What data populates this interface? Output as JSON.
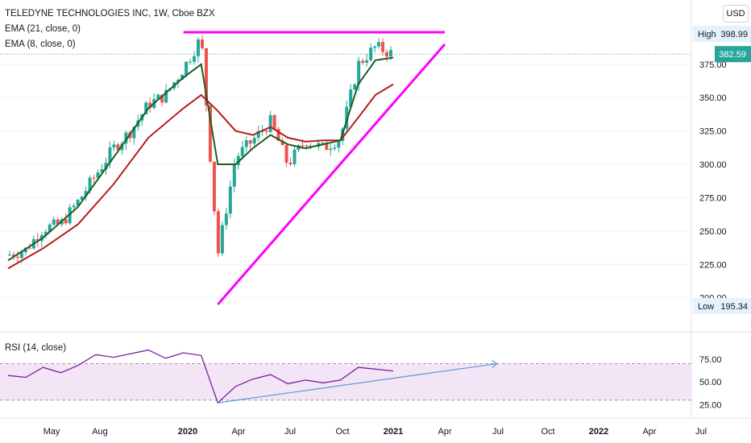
{
  "legend": {
    "title": "TELEDYNE TECHNOLOGIES INC, 1W, Cboe BZX",
    "ema21": "EMA (21, close, 0)",
    "ema8": "EMA (8, close, 0)",
    "rsi": "RSI (14, close)"
  },
  "currency_button": "USD",
  "price_axis": {
    "ticks": [
      "375.00",
      "350.00",
      "325.00",
      "300.00",
      "275.00",
      "250.00",
      "225.00",
      "200.00"
    ],
    "high_label": "High",
    "high_value": "398.99",
    "low_label": "Low",
    "low_value": "195.34",
    "last_value": "382.59"
  },
  "rsi_axis": {
    "ticks": [
      "75.00",
      "50.00",
      "25.00"
    ]
  },
  "time_axis": {
    "labels": [
      {
        "text": "May",
        "bold": false
      },
      {
        "text": "Aug",
        "bold": false
      },
      {
        "text": "2020",
        "bold": true
      },
      {
        "text": "Apr",
        "bold": false
      },
      {
        "text": "Jul",
        "bold": false
      },
      {
        "text": "Oct",
        "bold": false
      },
      {
        "text": "2021",
        "bold": true
      },
      {
        "text": "Apr",
        "bold": false
      },
      {
        "text": "Jul",
        "bold": false
      },
      {
        "text": "Oct",
        "bold": false
      },
      {
        "text": "2022",
        "bold": true
      },
      {
        "text": "Apr",
        "bold": false
      },
      {
        "text": "Jul",
        "bold": false
      }
    ]
  },
  "colors": {
    "up": "#26a69a",
    "down": "#ef5350",
    "ema8": "#1b5e20",
    "ema21": "#b71c1c",
    "trendline": "#ff00ff",
    "rsi_line": "#7b1fa2",
    "rsi_band": "#f3e5f5",
    "rsi_trend": "#5b9bd5",
    "label_bg": "#e3f2fd",
    "last_bg": "#26a69a"
  },
  "chart_data": {
    "type": "candlestick",
    "title": "TELEDYNE TECHNOLOGIES INC, 1W, Cboe BZX",
    "y_range": [
      195,
      400
    ],
    "high": 398.99,
    "low": 195.34,
    "last": 382.59,
    "price_path": [
      [
        "2019-03",
        232
      ],
      [
        "2019-04",
        236
      ],
      [
        "2019-05",
        252
      ],
      [
        "2019-06",
        255
      ],
      [
        "2019-07",
        272
      ],
      [
        "2019-08",
        292
      ],
      [
        "2019-09",
        312
      ],
      [
        "2019-10",
        325
      ],
      [
        "2019-11",
        345
      ],
      [
        "2019-12",
        352
      ],
      [
        "2020-01",
        372
      ],
      [
        "2020-02",
        395
      ],
      [
        "2020-03",
        232
      ],
      [
        "2020-04",
        305
      ],
      [
        "2020-05",
        318
      ],
      [
        "2020-06",
        332
      ],
      [
        "2020-07",
        300
      ],
      [
        "2020-08",
        318
      ],
      [
        "2020-09",
        312
      ],
      [
        "2020-10",
        320
      ],
      [
        "2020-11",
        375
      ],
      [
        "2020-12",
        388
      ],
      [
        "2021-01",
        382.59
      ]
    ],
    "ema8_path": [
      [
        "2019-03",
        228
      ],
      [
        "2019-05",
        245
      ],
      [
        "2019-07",
        268
      ],
      [
        "2019-09",
        305
      ],
      [
        "2019-11",
        342
      ],
      [
        "2020-01",
        365
      ],
      [
        "2020-02",
        375
      ],
      [
        "2020-03",
        300
      ],
      [
        "2020-04",
        300
      ],
      [
        "2020-05",
        312
      ],
      [
        "2020-06",
        322
      ],
      [
        "2020-07",
        315
      ],
      [
        "2020-08",
        312
      ],
      [
        "2020-09",
        315
      ],
      [
        "2020-10",
        318
      ],
      [
        "2020-11",
        360
      ],
      [
        "2020-12",
        378
      ],
      [
        "2021-01",
        380
      ]
    ],
    "ema21_path": [
      [
        "2019-03",
        222
      ],
      [
        "2019-05",
        237
      ],
      [
        "2019-07",
        255
      ],
      [
        "2019-09",
        285
      ],
      [
        "2019-11",
        320
      ],
      [
        "2020-01",
        342
      ],
      [
        "2020-02",
        352
      ],
      [
        "2020-03",
        340
      ],
      [
        "2020-04",
        325
      ],
      [
        "2020-05",
        322
      ],
      [
        "2020-06",
        328
      ],
      [
        "2020-07",
        320
      ],
      [
        "2020-08",
        317
      ],
      [
        "2020-09",
        318
      ],
      [
        "2020-10",
        318
      ],
      [
        "2020-11",
        335
      ],
      [
        "2020-12",
        352
      ],
      [
        "2021-01",
        360
      ]
    ],
    "trendlines": [
      {
        "name": "resistance",
        "from": [
          "2020-01",
          399
        ],
        "to": [
          "2021-04",
          399
        ]
      },
      {
        "name": "support",
        "from": [
          "2020-03",
          195
        ],
        "to": [
          "2021-04",
          390
        ]
      }
    ],
    "rsi": {
      "name": "RSI (14, close)",
      "y_range": [
        20,
        82
      ],
      "band": [
        30,
        70
      ],
      "values": [
        [
          "2019-03",
          57
        ],
        [
          "2019-04",
          55
        ],
        [
          "2019-05",
          66
        ],
        [
          "2019-06",
          60
        ],
        [
          "2019-07",
          68
        ],
        [
          "2019-08",
          80
        ],
        [
          "2019-09",
          77
        ],
        [
          "2019-10",
          81
        ],
        [
          "2019-11",
          85
        ],
        [
          "2019-12",
          76
        ],
        [
          "2020-01",
          82
        ],
        [
          "2020-02",
          79
        ],
        [
          "2020-03",
          27
        ],
        [
          "2020-04",
          45
        ],
        [
          "2020-05",
          53
        ],
        [
          "2020-06",
          58
        ],
        [
          "2020-07",
          48
        ],
        [
          "2020-08",
          52
        ],
        [
          "2020-09",
          49
        ],
        [
          "2020-10",
          52
        ],
        [
          "2020-11",
          66
        ],
        [
          "2020-12",
          64
        ],
        [
          "2021-01",
          62
        ]
      ],
      "trendline": {
        "from": [
          "2020-03",
          27
        ],
        "to": [
          "2021-07",
          70
        ]
      }
    }
  }
}
